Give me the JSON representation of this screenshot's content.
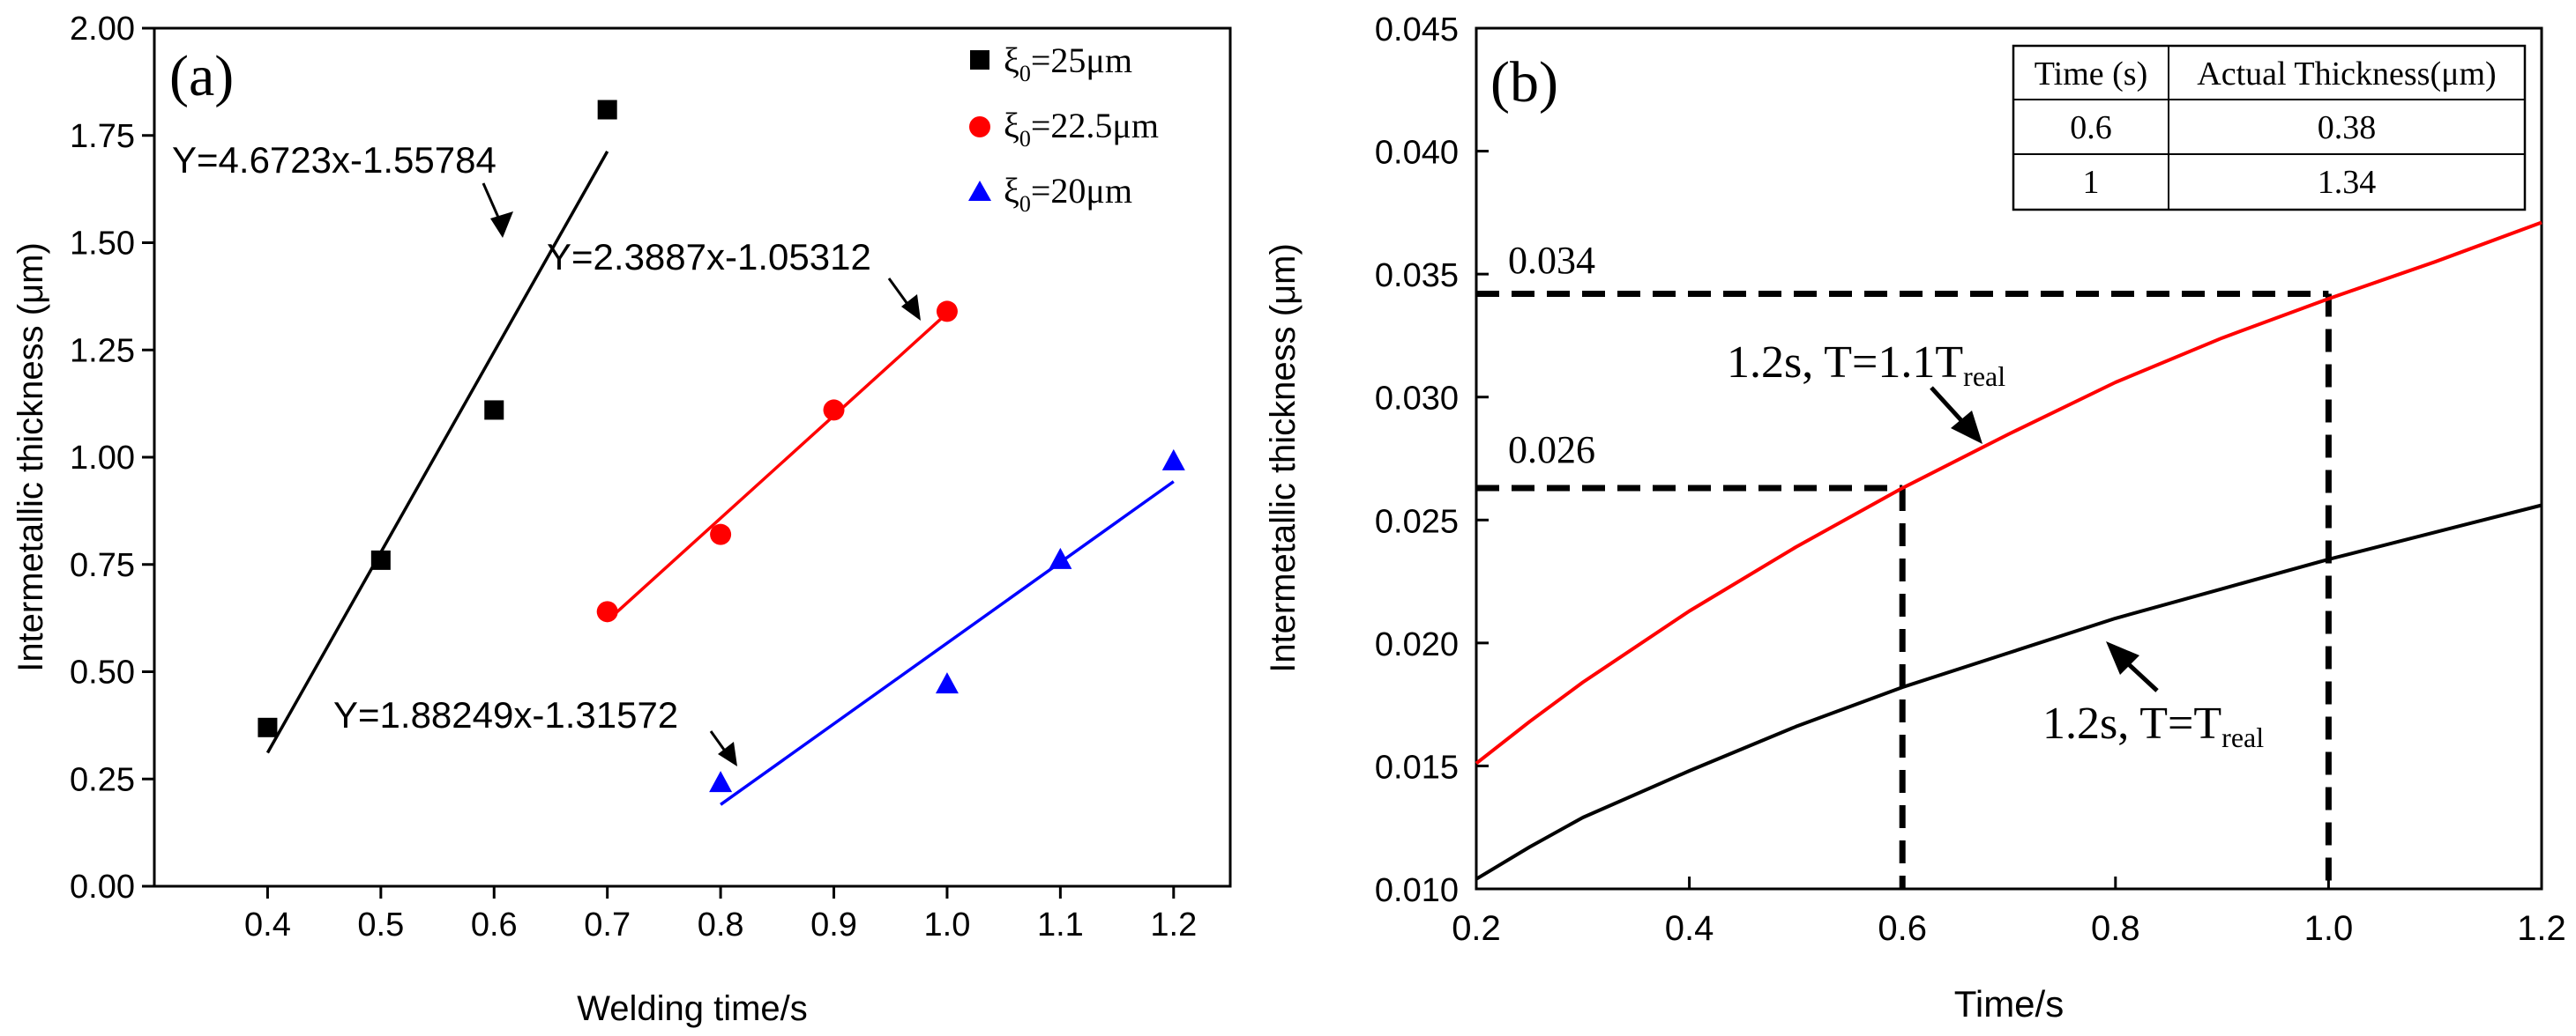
{
  "colors": {
    "black": "#000000",
    "red": "#ff0000",
    "blue": "#0000ff"
  },
  "chart_data": [
    {
      "panel_label": "(a)",
      "type": "scatter",
      "xlabel": "Welding time/s",
      "ylabel": "Intermetallic thickness (μm)",
      "xlim": [
        0.3,
        1.25
      ],
      "ylim": [
        0.0,
        2.0
      ],
      "xticks": [
        0.4,
        0.5,
        0.6,
        0.7,
        0.8,
        0.9,
        1.0,
        1.1,
        1.2
      ],
      "xtick_labels": [
        "0.4",
        "0.5",
        "0.6",
        "0.7",
        "0.8",
        "0.9",
        "1.0",
        "1.1",
        "1.2"
      ],
      "yticks": [
        0.0,
        0.25,
        0.5,
        0.75,
        1.0,
        1.25,
        1.5,
        1.75,
        2.0
      ],
      "ytick_labels": [
        "0.00",
        "0.25",
        "0.50",
        "0.75",
        "1.00",
        "1.25",
        "1.50",
        "1.75",
        "2.00"
      ],
      "legend_position": "top-right",
      "series": [
        {
          "name": "ξ0=25μm",
          "legend_main": "ξ",
          "legend_sub": "0",
          "legend_rest": "=25μm",
          "color": "#000000",
          "marker": "square",
          "x": [
            0.4,
            0.5,
            0.6,
            0.7
          ],
          "y": [
            0.37,
            0.76,
            1.11,
            1.81
          ],
          "fit_label": "Y=4.6723x-1.55784",
          "fit_slope": 4.6723,
          "fit_intercept": -1.55784,
          "fit_range": [
            0.4,
            0.7
          ]
        },
        {
          "name": "ξ0=22.5μm",
          "legend_main": "ξ",
          "legend_sub": "0",
          "legend_rest": "=22.5μm",
          "color": "#ff0000",
          "marker": "circle",
          "x": [
            0.7,
            0.8,
            0.9,
            1.0
          ],
          "y": [
            0.64,
            0.82,
            1.11,
            1.34
          ],
          "fit_label": "Y=2.3887x-1.05312",
          "fit_slope": 2.3887,
          "fit_intercept": -1.05312,
          "fit_range": [
            0.7,
            1.0
          ]
        },
        {
          "name": "ξ0=20μm",
          "legend_main": "ξ",
          "legend_sub": "0",
          "legend_rest": "=20μm",
          "color": "#0000ff",
          "marker": "triangle",
          "x": [
            0.8,
            1.0,
            1.1,
            1.2
          ],
          "y": [
            0.24,
            0.47,
            0.76,
            0.99
          ],
          "fit_label": "Y=1.88249x-1.31572",
          "fit_slope": 1.88249,
          "fit_intercept": -1.31572,
          "fit_range": [
            0.8,
            1.2
          ]
        }
      ]
    },
    {
      "panel_label": "(b)",
      "type": "line",
      "xlabel": "Time/s",
      "ylabel": "Intermetallic thickness (μm)",
      "xlim": [
        0.2,
        1.2
      ],
      "ylim": [
        0.01,
        0.045
      ],
      "xticks": [
        0.2,
        0.4,
        0.6,
        0.8,
        1.0,
        1.2
      ],
      "xtick_labels": [
        "0.2",
        "0.4",
        "0.6",
        "0.8",
        "1.0",
        "1.2"
      ],
      "yticks": [
        0.01,
        0.015,
        0.02,
        0.025,
        0.03,
        0.035,
        0.04,
        0.045
      ],
      "ytick_labels": [
        "0.010",
        "0.015",
        "0.020",
        "0.025",
        "0.030",
        "0.035",
        "0.040",
        "0.045"
      ],
      "series": [
        {
          "name": "1.2s, T=1.1Treal",
          "label_main": "1.2s, T=1.1T",
          "label_sub": "real",
          "color": "#ff0000",
          "x": [
            0.2,
            0.25,
            0.3,
            0.4,
            0.5,
            0.6,
            0.7,
            0.8,
            0.9,
            1.0,
            1.1,
            1.2
          ],
          "y": [
            0.0151,
            0.0168,
            0.0184,
            0.0213,
            0.0239,
            0.0263,
            0.0285,
            0.0306,
            0.0324,
            0.034,
            0.0355,
            0.0371
          ]
        },
        {
          "name": "1.2s, T=Treal",
          "label_main": "1.2s, T=T",
          "label_sub": "real",
          "color": "#000000",
          "x": [
            0.2,
            0.25,
            0.3,
            0.4,
            0.5,
            0.6,
            0.7,
            0.8,
            0.9,
            1.0,
            1.1,
            1.2
          ],
          "y": [
            0.0104,
            0.0117,
            0.0129,
            0.0148,
            0.0166,
            0.0182,
            0.0196,
            0.021,
            0.0222,
            0.0234,
            0.0245,
            0.0256
          ]
        }
      ],
      "reference_lines": [
        {
          "label": "0.026",
          "x": 0.6,
          "y": 0.0263
        },
        {
          "label": "0.034",
          "x": 1.0,
          "y": 0.0342
        }
      ],
      "table": {
        "headers": [
          "Time (s)",
          "Actual Thickness(μm)"
        ],
        "rows": [
          [
            "0.6",
            "0.38"
          ],
          [
            "1",
            "1.34"
          ]
        ]
      }
    }
  ]
}
